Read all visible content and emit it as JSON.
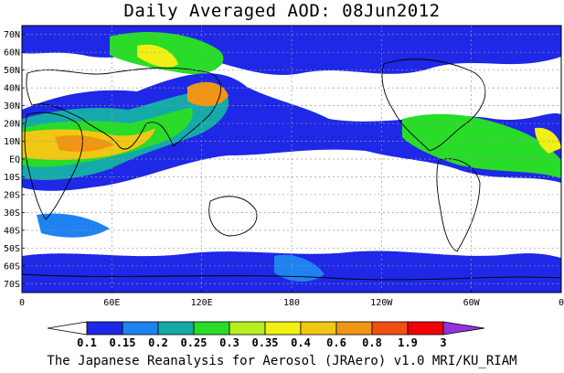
{
  "title": "Daily Averaged AOD: 08Jun2012",
  "footer": "The Japanese Reanalysis for Aerosol (JRAero) v1.0 MRI/KU_RIAM",
  "map": {
    "lat_labels": [
      "70N",
      "60N",
      "50N",
      "40N",
      "30N",
      "20N",
      "10N",
      "EQ",
      "10S",
      "20S",
      "30S",
      "40S",
      "50S",
      "60S",
      "70S"
    ],
    "lon_labels": [
      "0",
      "60E",
      "120E",
      "180",
      "120W",
      "60W",
      "0"
    ],
    "grid": true
  },
  "colorbar": {
    "labels": [
      "0.1",
      "0.15",
      "0.2",
      "0.25",
      "0.3",
      "0.35",
      "0.4",
      "0.6",
      "0.8",
      "1.9",
      "3"
    ],
    "colors": [
      "#ffffff",
      "#1e28e6",
      "#1e82f0",
      "#14aaaa",
      "#28dc28",
      "#b4f01e",
      "#f0f014",
      "#f0c814",
      "#f09614",
      "#f05014",
      "#f00000",
      "#9632dc"
    ]
  },
  "field_colors": {
    "land": "#ffffff",
    "coast": "#000000",
    "grid": "#9a9a9a"
  }
}
